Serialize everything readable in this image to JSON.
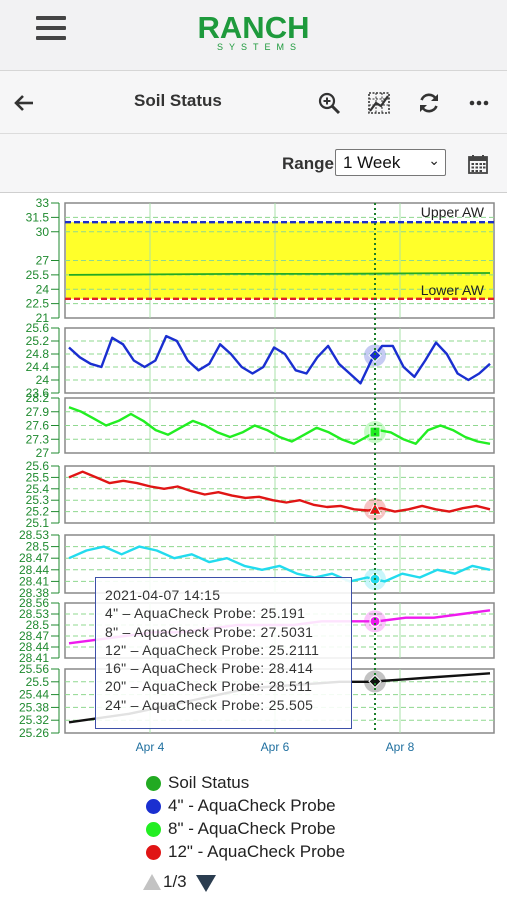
{
  "app": {
    "logo_main": "RANCH",
    "logo_sub": "SYSTEMS"
  },
  "toolbar": {
    "title": "Soil Status",
    "icons": [
      "back-arrow-icon",
      "zoom-icon",
      "chart-grid-icon",
      "refresh-icon",
      "more-icon"
    ]
  },
  "range": {
    "label": "Range",
    "selected": "1 Week",
    "calendar_icon": "calendar-icon"
  },
  "colors": {
    "brand": "#1e9a3c",
    "upper_aw": "#1d2fc8",
    "lower_aw": "#e0202a",
    "band": "#ffff2a"
  },
  "chart_data": {
    "type": "line",
    "x_ticks": [
      "Apr 4",
      "Apr 6",
      "Apr 8"
    ],
    "crosshair_x": "2021-04-07 14:15",
    "panels": [
      {
        "name": "Soil Status",
        "color": "#22aa22",
        "ylim": [
          21,
          33
        ],
        "yticks": [
          "33",
          "31.5",
          "30",
          "27",
          "25.5",
          "24",
          "22.5",
          "21"
        ],
        "band": {
          "upper": 31,
          "lower": 23,
          "upper_label": "Upper AW",
          "lower_label": "Lower AW"
        },
        "values": [
          25.5,
          25.55,
          25.6,
          25.6,
          25.65,
          25.7
        ]
      },
      {
        "name": "4\" - AquaCheck Probe",
        "color": "#1a2fd0",
        "marker": "diamond",
        "ylim": [
          23.6,
          25.6
        ],
        "yticks": [
          "25.6",
          "25.2",
          "24.8",
          "24.4",
          "24",
          "23.6"
        ],
        "values": [
          25.0,
          24.7,
          24.5,
          24.4,
          25.3,
          25.1,
          24.6,
          24.4,
          24.6,
          25.35,
          25.2,
          24.6,
          24.3,
          24.5,
          25.1,
          24.8,
          24.4,
          24.2,
          24.4,
          25.0,
          24.8,
          24.3,
          24.2,
          24.7,
          25.05,
          24.5,
          24.2,
          23.9,
          24.6,
          25.05,
          25.05,
          24.4,
          24.1,
          24.6,
          25.15,
          24.8,
          24.2,
          24.0,
          24.2,
          24.5
        ]
      },
      {
        "name": "8\" - AquaCheck Probe",
        "color": "#22ee22",
        "marker": "square",
        "ylim": [
          27,
          28.2
        ],
        "yticks": [
          "28.2",
          "27.9",
          "27.6",
          "27.3",
          "27"
        ],
        "values": [
          28.0,
          27.9,
          27.75,
          27.6,
          27.7,
          27.85,
          27.7,
          27.5,
          27.4,
          27.55,
          27.7,
          27.6,
          27.45,
          27.35,
          27.45,
          27.6,
          27.5,
          27.35,
          27.25,
          27.4,
          27.55,
          27.45,
          27.3,
          27.2,
          27.35,
          27.5,
          27.45,
          27.3,
          27.2,
          27.5,
          27.6,
          27.5,
          27.35,
          27.25,
          27.2
        ]
      },
      {
        "name": "12\" - AquaCheck Probe",
        "color": "#e01515",
        "marker": "triangle",
        "ylim": [
          25.1,
          25.6
        ],
        "yticks": [
          "25.6",
          "25.5",
          "25.4",
          "25.3",
          "25.2",
          "25.1"
        ],
        "values": [
          25.5,
          25.55,
          25.5,
          25.45,
          25.47,
          25.45,
          25.42,
          25.4,
          25.42,
          25.38,
          25.35,
          25.37,
          25.34,
          25.32,
          25.33,
          25.3,
          25.28,
          25.3,
          25.26,
          25.24,
          25.25,
          25.22,
          25.21,
          25.23,
          25.2,
          25.22,
          25.25,
          25.22,
          25.2,
          25.23,
          25.25,
          25.22
        ]
      },
      {
        "name": "16\" - AquaCheck Probe",
        "color": "#22dbee",
        "marker": "circle",
        "ylim": [
          28.38,
          28.53
        ],
        "yticks": [
          "28.53",
          "28.5",
          "28.47",
          "28.44",
          "28.41",
          "28.38"
        ],
        "values": [
          28.47,
          28.49,
          28.5,
          28.48,
          28.5,
          28.49,
          28.47,
          28.48,
          28.46,
          28.47,
          28.45,
          28.44,
          28.45,
          28.43,
          28.42,
          28.43,
          28.41,
          28.42,
          28.41,
          28.43,
          28.42,
          28.44,
          28.43,
          28.45,
          28.44
        ]
      },
      {
        "name": "20\" - AquaCheck Probe",
        "color": "#ee1bee",
        "marker": "circle",
        "ylim": [
          28.41,
          28.56
        ],
        "yticks": [
          "28.56",
          "28.53",
          "28.5",
          "28.47",
          "28.44",
          "28.41"
        ],
        "values": [
          28.45,
          28.46,
          28.47,
          28.48,
          28.48,
          28.49,
          28.5,
          28.5,
          28.5,
          28.51,
          28.51,
          28.51,
          28.52,
          28.52,
          28.53,
          28.54
        ]
      },
      {
        "name": "24\" - AquaCheck Probe",
        "color": "#111111",
        "marker": "diamond",
        "ylim": [
          25.26,
          25.56
        ],
        "yticks": [
          "25.56",
          "25.5",
          "25.44",
          "25.38",
          "25.32",
          "25.26"
        ],
        "values": [
          25.31,
          25.33,
          25.35,
          25.38,
          25.41,
          25.44,
          25.47,
          25.48,
          25.49,
          25.5,
          25.5,
          25.51,
          25.52,
          25.53,
          25.54
        ]
      }
    ],
    "tooltip": {
      "time": "2021-04-07 14:15",
      "rows": [
        "4\" – AquaCheck Probe: 25.191",
        "8\" – AquaCheck Probe: 27.5031",
        "12\" – AquaCheck Probe: 25.2111",
        "16\" – AquaCheck Probe: 28.414",
        "20\" – AquaCheck Probe: 28.511",
        "24\" – AquaCheck Probe: 25.505"
      ]
    }
  },
  "legend": [
    {
      "label": "Soil Status",
      "color": "#22aa22"
    },
    {
      "label": "4\" - AquaCheck Probe",
      "color": "#1a2fd0"
    },
    {
      "label": "8\" - AquaCheck Probe",
      "color": "#22ee22"
    },
    {
      "label": "12\" - AquaCheck Probe",
      "color": "#e01515"
    }
  ],
  "pager": {
    "text": "1/3"
  }
}
